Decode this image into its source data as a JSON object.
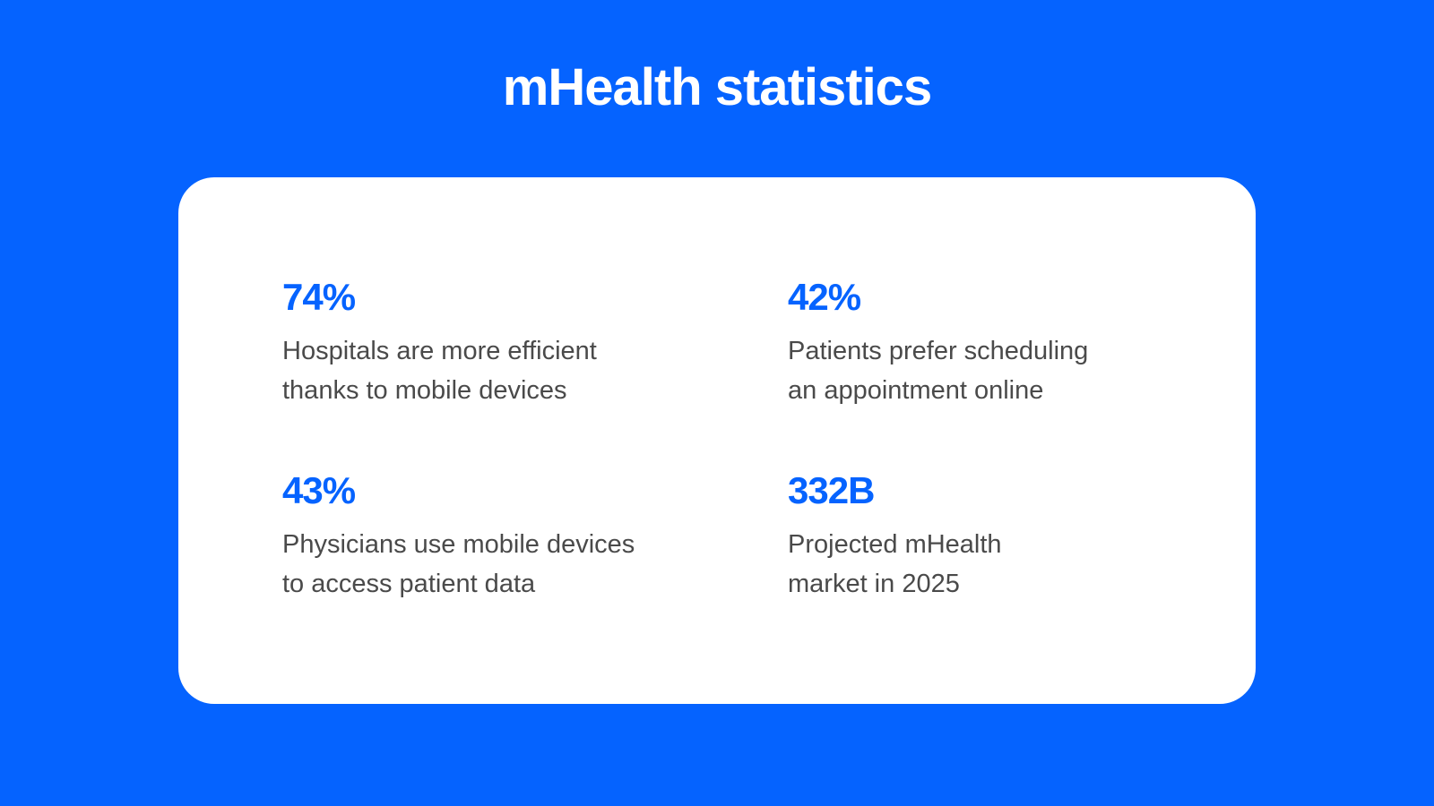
{
  "title": "mHealth statistics",
  "colors": {
    "background": "#0563FF",
    "card": "#FFFFFF",
    "accent": "#0563FF",
    "body_text": "#4A4A4A"
  },
  "stats": [
    {
      "value": "74%",
      "description": "Hospitals are more efficient\nthanks to mobile devices"
    },
    {
      "value": "42%",
      "description": "Patients prefer scheduling\nan appointment online"
    },
    {
      "value": "43%",
      "description": "Physicians use mobile devices\nto access patient data"
    },
    {
      "value": "332B",
      "description": "Projected mHealth\nmarket in 2025"
    }
  ]
}
